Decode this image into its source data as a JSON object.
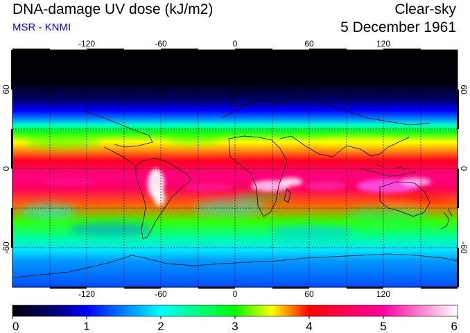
{
  "header": {
    "title": "DNA-damage UV dose (kJ/m2)",
    "credit": "MSR - KNMI",
    "mode": "Clear-sky",
    "date": "5 December 1961"
  },
  "map": {
    "lon_ticks": [
      "-120",
      "-60",
      "0",
      "60",
      "120"
    ],
    "lat_ticks": [
      "60",
      "0",
      "-60"
    ]
  },
  "colorbar": {
    "ticks": [
      "0",
      "1",
      "2",
      "3",
      "4",
      "5",
      "6"
    ],
    "min": 0,
    "max": 6,
    "stops": [
      {
        "v": 0.0,
        "c": "#000000"
      },
      {
        "v": 0.6,
        "c": "#000080"
      },
      {
        "v": 1.0,
        "c": "#0000ff"
      },
      {
        "v": 1.5,
        "c": "#0080ff"
      },
      {
        "v": 2.0,
        "c": "#00ffff"
      },
      {
        "v": 2.5,
        "c": "#00ff80"
      },
      {
        "v": 3.0,
        "c": "#00ff00"
      },
      {
        "v": 3.5,
        "c": "#ffff00"
      },
      {
        "v": 4.0,
        "c": "#ff0000"
      },
      {
        "v": 5.0,
        "c": "#ff00a0"
      },
      {
        "v": 6.0,
        "c": "#ffffff"
      }
    ]
  },
  "field_bands": [
    {
      "lat": 90,
      "value": 0.0
    },
    {
      "lat": 66,
      "value": 0.05
    },
    {
      "lat": 52,
      "value": 0.5
    },
    {
      "lat": 44,
      "value": 1.0
    },
    {
      "lat": 38,
      "value": 1.5
    },
    {
      "lat": 33,
      "value": 2.2
    },
    {
      "lat": 28,
      "value": 2.9
    },
    {
      "lat": 20,
      "value": 3.5
    },
    {
      "lat": 6,
      "value": 4.2
    },
    {
      "lat": -5,
      "value": 4.8
    },
    {
      "lat": -15,
      "value": 4.6
    },
    {
      "lat": -28,
      "value": 3.8
    },
    {
      "lat": -40,
      "value": 3.1
    },
    {
      "lat": -52,
      "value": 2.4
    },
    {
      "lat": -62,
      "value": 1.9
    },
    {
      "lat": -70,
      "value": 1.6
    },
    {
      "lat": -90,
      "value": 1.3
    }
  ]
}
